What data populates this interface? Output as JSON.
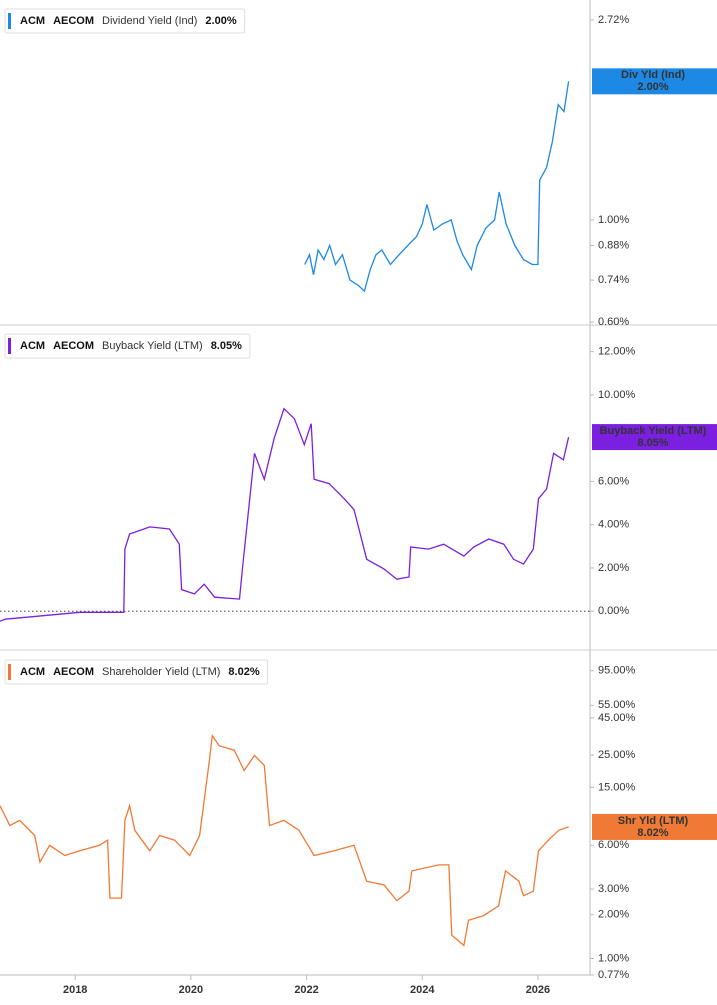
{
  "chart_data": [
    {
      "type": "line",
      "ticker": "ACM",
      "company": "AECOM",
      "log": true,
      "current": {
        "value": 2.0,
        "label": "2.00%"
      },
      "badge": "Div Yld (Ind)",
      "xlim": [
        2016.7,
        2026.9
      ],
      "ylim": [
        0.6,
        2.93
      ],
      "yticks": [
        {
          "value": 2.72,
          "label": "2.72%"
        },
        {
          "value": 1.0,
          "label": "1.00%"
        },
        {
          "value": 0.88,
          "label": "0.88%"
        },
        {
          "value": 0.74,
          "label": "0.74%"
        },
        {
          "value": 0.6,
          "label": "0.60%"
        }
      ],
      "x": [
        2021.97,
        2022.05,
        2022.12,
        2022.2,
        2022.3,
        2022.4,
        2022.5,
        2022.62,
        2022.75,
        2022.9,
        2023.0,
        2023.1,
        2023.2,
        2023.3,
        2023.45,
        2023.6,
        2023.75,
        2023.9,
        2024.0,
        2024.08,
        2024.2,
        2024.35,
        2024.5,
        2024.6,
        2024.7,
        2024.85,
        2024.95,
        2025.1,
        2025.25,
        2025.33,
        2025.45,
        2025.6,
        2025.75,
        2025.9,
        2026.0,
        2026.03,
        2026.15,
        2026.25,
        2026.35,
        2026.45,
        2026.53
      ],
      "series": [
        {
          "name": "Dividend Yield (Ind)",
          "color": "#1e88e5",
          "values": [
            0.8,
            0.84,
            0.76,
            0.86,
            0.82,
            0.88,
            0.8,
            0.84,
            0.74,
            0.72,
            0.7,
            0.78,
            0.84,
            0.86,
            0.8,
            0.84,
            0.88,
            0.92,
            0.98,
            1.08,
            0.95,
            0.98,
            1.0,
            0.9,
            0.84,
            0.78,
            0.88,
            0.96,
            1.0,
            1.15,
            0.98,
            0.88,
            0.82,
            0.8,
            0.8,
            1.22,
            1.3,
            1.48,
            1.78,
            1.72,
            2.0
          ]
        }
      ]
    },
    {
      "type": "line",
      "ticker": "ACM",
      "company": "AECOM",
      "log": false,
      "zero_line": true,
      "current": {
        "value": 8.05,
        "label": "8.05%"
      },
      "badge": "Buyback Yield (LTM)",
      "xlim": [
        2016.7,
        2026.9
      ],
      "ylim": [
        -1.7,
        13
      ],
      "yticks": [
        {
          "value": 12,
          "label": "12.00%"
        },
        {
          "value": 10,
          "label": "10.00%"
        },
        {
          "value": 6,
          "label": "6.00%"
        },
        {
          "value": 4,
          "label": "4.00%"
        },
        {
          "value": 2,
          "label": "2.00%"
        },
        {
          "value": 0,
          "label": "0.00%"
        }
      ],
      "x": [
        2016.7,
        2016.79,
        2018.08,
        2018.84,
        2018.86,
        2018.94,
        2019.29,
        2019.63,
        2019.8,
        2019.84,
        2020.06,
        2020.23,
        2020.41,
        2020.84,
        2020.89,
        2021.1,
        2021.27,
        2021.44,
        2021.61,
        2021.79,
        2021.96,
        2022.08,
        2022.13,
        2022.39,
        2022.65,
        2022.82,
        2023.04,
        2023.34,
        2023.56,
        2023.77,
        2023.8,
        2024.11,
        2024.37,
        2024.72,
        2024.89,
        2025.15,
        2025.41,
        2025.58,
        2025.75,
        2025.92,
        2026.01,
        2026.15,
        2026.27,
        2026.44,
        2026.53
      ],
      "series": [
        {
          "name": "Buyback Yield (LTM)",
          "color": "#7b1fe0",
          "values": [
            -0.46,
            -0.37,
            -0.05,
            -0.05,
            2.87,
            3.57,
            3.9,
            3.8,
            3.1,
            1.0,
            0.8,
            1.25,
            0.65,
            0.56,
            1.95,
            7.3,
            6.1,
            8.0,
            9.36,
            8.9,
            7.7,
            8.67,
            6.1,
            5.9,
            5.2,
            4.7,
            2.4,
            1.95,
            1.48,
            1.58,
            2.97,
            2.87,
            3.1,
            2.55,
            2.97,
            3.34,
            3.1,
            2.4,
            2.18,
            2.87,
            5.2,
            5.65,
            7.3,
            7.0,
            8.05
          ]
        }
      ]
    },
    {
      "type": "line",
      "ticker": "ACM",
      "company": "AECOM",
      "log": true,
      "current": {
        "value": 8.02,
        "label": "8.02%"
      },
      "badge": "Shr Yld (LTM)",
      "xlim": [
        2016.7,
        2026.9
      ],
      "ylim": [
        0.77,
        120
      ],
      "xticks": [
        2018,
        2020,
        2022,
        2024,
        2026
      ],
      "yticks": [
        {
          "value": 95,
          "label": "95.00%"
        },
        {
          "value": 55,
          "label": "55.00%"
        },
        {
          "value": 45,
          "label": "45.00%"
        },
        {
          "value": 25,
          "label": "25.00%"
        },
        {
          "value": 15,
          "label": "15.00%"
        },
        {
          "value": 6,
          "label": "6.00%"
        },
        {
          "value": 3,
          "label": "3.00%"
        },
        {
          "value": 2,
          "label": "2.00%"
        },
        {
          "value": 1,
          "label": "1.00%"
        },
        {
          "value": 0.77,
          "label": "0.77%"
        }
      ],
      "x": [
        2016.7,
        2016.87,
        2017.04,
        2017.3,
        2017.39,
        2017.56,
        2017.82,
        2018.08,
        2018.42,
        2018.56,
        2018.6,
        2018.8,
        2018.86,
        2018.94,
        2019.03,
        2019.29,
        2019.46,
        2019.72,
        2019.98,
        2020.15,
        2020.23,
        2020.32,
        2020.37,
        2020.49,
        2020.75,
        2020.92,
        2021.1,
        2021.27,
        2021.36,
        2021.61,
        2021.87,
        2022.13,
        2022.48,
        2022.82,
        2023.04,
        2023.34,
        2023.56,
        2023.77,
        2023.82,
        2024.29,
        2024.46,
        2024.51,
        2024.72,
        2024.8,
        2025.06,
        2025.32,
        2025.44,
        2025.67,
        2025.75,
        2025.92,
        2026.01,
        2026.18,
        2026.36,
        2026.53
      ],
      "series": [
        {
          "name": "Shareholder Yield (LTM)",
          "color": "#f07a35",
          "values": [
            11.2,
            8.2,
            8.9,
            7.0,
            4.6,
            6.0,
            5.1,
            5.5,
            6.0,
            6.5,
            2.6,
            2.6,
            8.9,
            11.2,
            7.6,
            5.5,
            7.0,
            6.5,
            5.1,
            7.0,
            12.2,
            23,
            34,
            29,
            27,
            19.6,
            24.9,
            21.2,
            8.2,
            8.9,
            7.6,
            5.1,
            5.5,
            6.0,
            3.4,
            3.2,
            2.5,
            2.9,
            4.0,
            4.4,
            4.4,
            1.44,
            1.23,
            1.83,
            1.97,
            2.3,
            4.0,
            3.4,
            2.7,
            2.9,
            5.5,
            6.5,
            7.6,
            8.02
          ]
        }
      ]
    }
  ]
}
